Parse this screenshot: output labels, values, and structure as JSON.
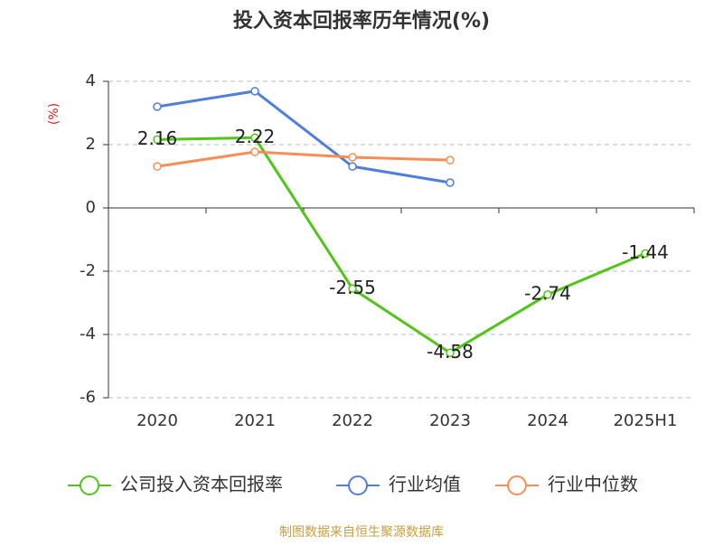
{
  "chart_data": {
    "type": "line",
    "title": "投入资本回报率历年情况(%)",
    "y_label": "(%)",
    "categories": [
      "2020",
      "2021",
      "2022",
      "2023",
      "2024",
      "2025H1"
    ],
    "series": [
      {
        "name": "公司投入资本回报率",
        "color": "#52c41a",
        "values": [
          2.16,
          2.22,
          -2.55,
          -4.58,
          -2.74,
          -1.44
        ],
        "show_labels": true
      },
      {
        "name": "行业均值",
        "color": "#4e7fdc",
        "values": [
          3.2,
          3.69,
          1.31,
          0.8,
          null,
          null
        ],
        "show_labels": false
      },
      {
        "name": "行业中位数",
        "color": "#f98d58",
        "values": [
          1.31,
          1.77,
          1.6,
          1.51,
          null,
          null
        ],
        "show_labels": false
      }
    ],
    "ylim": [
      -6,
      4
    ],
    "yticks": [
      -6,
      -4,
      -2,
      0,
      2,
      4
    ],
    "grid": true,
    "source": "制图数据来自恒生聚源数据库"
  }
}
